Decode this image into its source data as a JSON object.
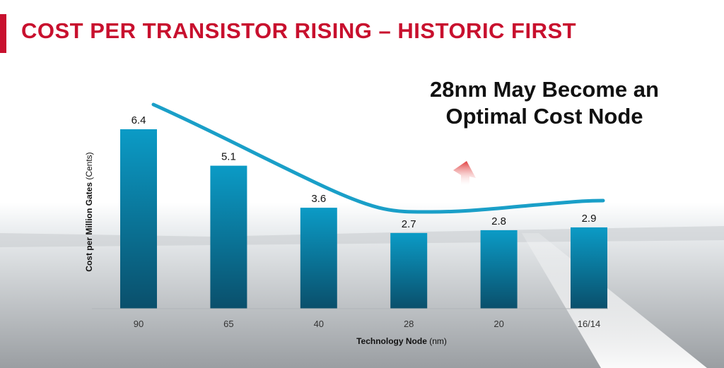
{
  "slide": {
    "title": "COST PER TRANSISTOR RISING – HISTORIC FIRST",
    "callout_line1": "28nm May Become an",
    "callout_line2": "Optimal Cost Node"
  },
  "colors": {
    "accent": "#c8102e",
    "bar_top": "#0b9bc6",
    "bar_bottom": "#0a4f6b",
    "trend_line": "#1a9fc8",
    "arrow": "#d9232e"
  },
  "chart_data": {
    "type": "bar",
    "categories": [
      "90",
      "65",
      "40",
      "28",
      "20",
      "16/14"
    ],
    "values": [
      6.4,
      5.1,
      3.6,
      2.7,
      2.8,
      2.9
    ],
    "value_labels": [
      "6.4",
      "5.1",
      "3.6",
      "2.7",
      "2.8",
      "2.9"
    ],
    "ylabel_bold": "Cost per Million Gates",
    "ylabel_unit": " (Cents)",
    "xlabel_bold": "Technology Node",
    "xlabel_unit": " (nm)",
    "ylim": [
      0,
      6.4
    ],
    "trend_line": true,
    "grid": false,
    "legend": "none"
  }
}
